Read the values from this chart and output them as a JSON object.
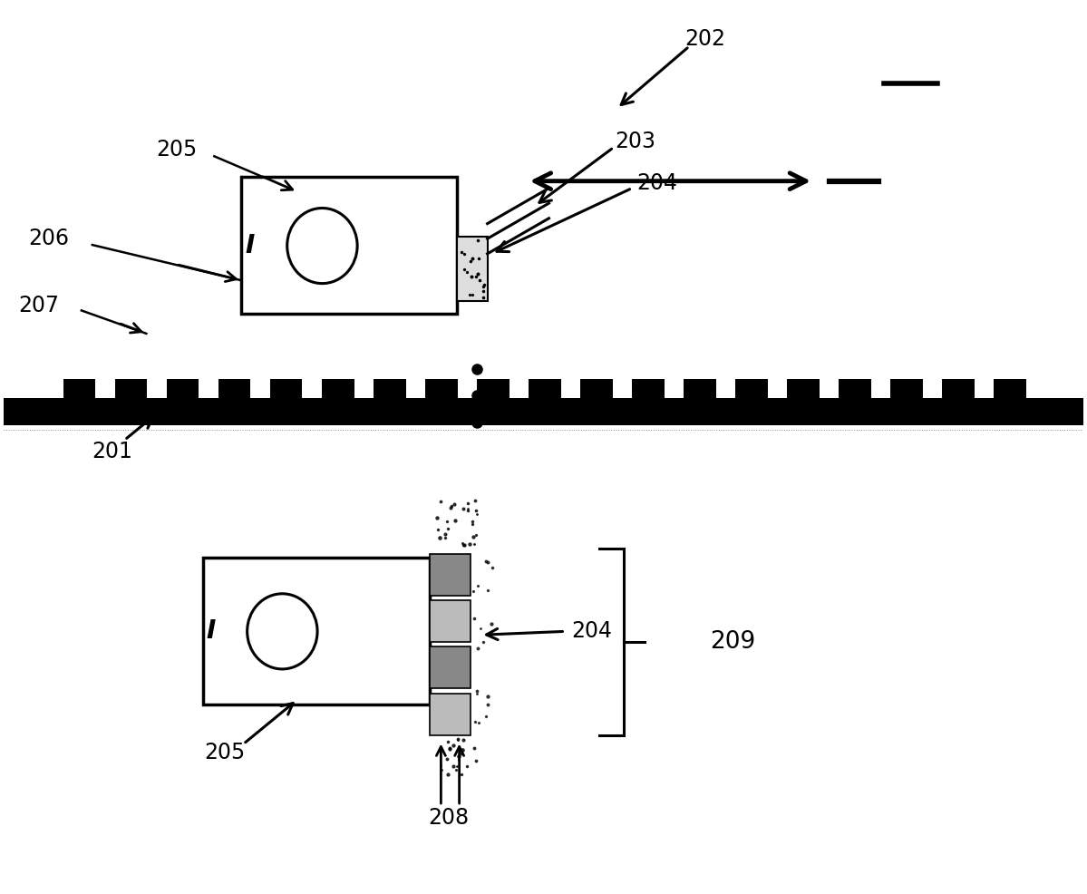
{
  "bg_color": "#ffffff",
  "fig_width": 11.99,
  "fig_height": 9.86
}
